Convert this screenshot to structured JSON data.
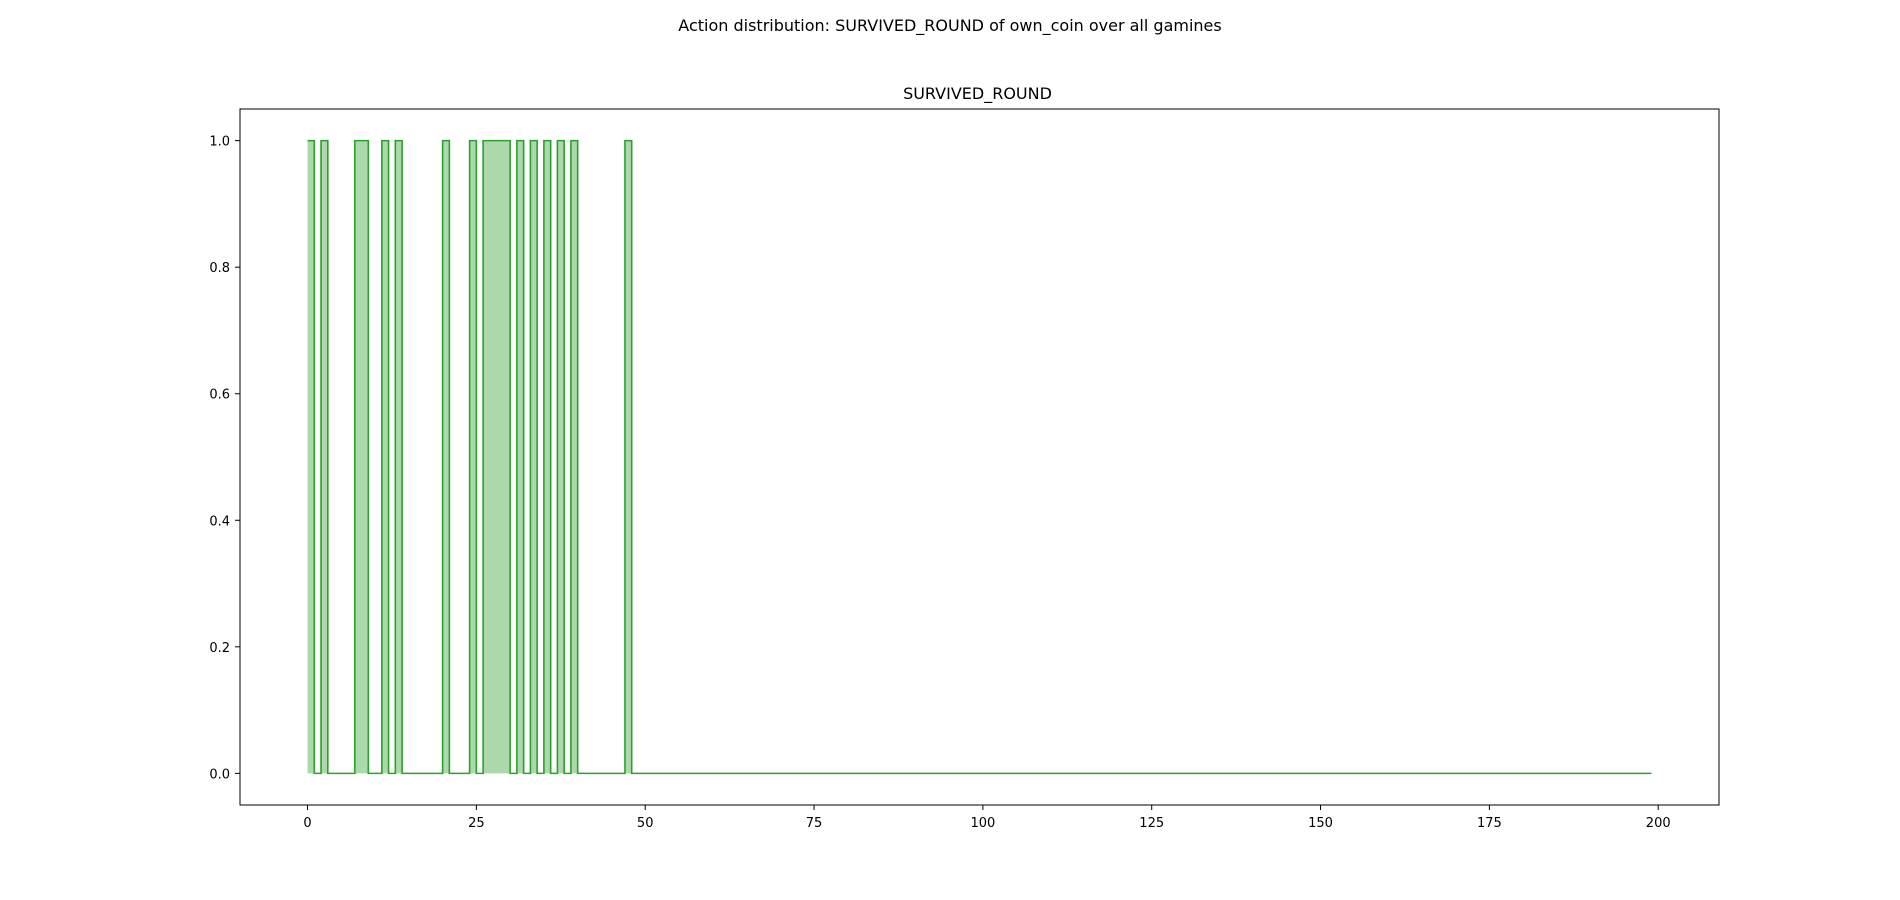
{
  "figure": {
    "suptitle": "Action distribution: SURVIVED_ROUND of own_coin over all gamines"
  },
  "chart_data": {
    "type": "area",
    "title": "SURVIVED_ROUND",
    "xlabel": "",
    "ylabel": "",
    "xlim": [
      -10,
      209
    ],
    "ylim": [
      -0.05,
      1.05
    ],
    "x_ticks": [
      0,
      25,
      50,
      75,
      100,
      125,
      150,
      175,
      200
    ],
    "x_tick_labels": [
      "0",
      "25",
      "50",
      "75",
      "100",
      "125",
      "150",
      "175",
      "200"
    ],
    "y_ticks": [
      0.0,
      0.2,
      0.4,
      0.6,
      0.8,
      1.0
    ],
    "y_tick_labels": [
      "0.0",
      "0.2",
      "0.4",
      "0.6",
      "0.8",
      "1.0"
    ],
    "grid": false,
    "legend": "none",
    "step": "post",
    "x_start": 0,
    "x_end": 199,
    "survived_rounds": [
      0,
      2,
      7,
      8,
      11,
      13,
      20,
      24,
      26,
      27,
      28,
      29,
      31,
      33,
      35,
      37,
      39,
      47
    ],
    "colors": {
      "line": "#2ca02c",
      "fill": "#2ca02c",
      "fill_opacity": 0.4,
      "axes": "#000000"
    }
  }
}
